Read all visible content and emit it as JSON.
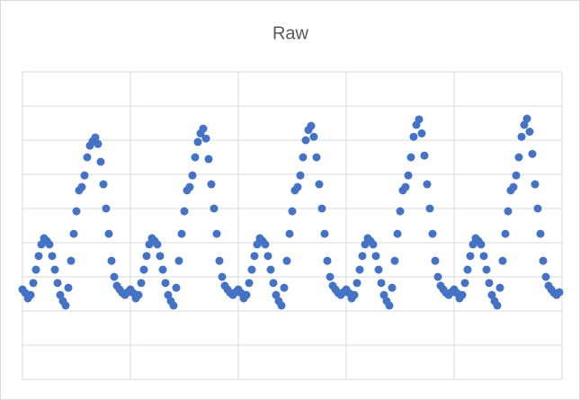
{
  "chart_data": {
    "type": "scatter",
    "title": "Raw",
    "color": "#4472c4",
    "grid": true,
    "tick_labels": false,
    "xlim": [
      0,
      5
    ],
    "xticks": [
      0,
      1,
      2,
      3,
      4,
      5
    ],
    "ylim": [
      0,
      9
    ],
    "yticks": [
      0,
      1,
      2,
      3,
      4,
      5,
      6,
      7,
      8,
      9
    ],
    "x": [
      0,
      0.025,
      0.05,
      0.075,
      0.1,
      0.125,
      0.15,
      0.175,
      0.2,
      0.225,
      0.25,
      0.275,
      0.3,
      0.325,
      0.35,
      0.375,
      0.4,
      0.425,
      0.45,
      0.475,
      0.5,
      0.525,
      0.55,
      0.575,
      0.6,
      0.625,
      0.65,
      0.675,
      0.7,
      0.725,
      0.75,
      0.775,
      0.8,
      0.825,
      0.85,
      0.875,
      0.9,
      0.925,
      0.95,
      0.975,
      1,
      1.025,
      1.05,
      1.075,
      1.1,
      1.125,
      1.15,
      1.175,
      1.2,
      1.225,
      1.25,
      1.275,
      1.3,
      1.325,
      1.35,
      1.375,
      1.4,
      1.425,
      1.45,
      1.475,
      1.5,
      1.525,
      1.55,
      1.575,
      1.6,
      1.625,
      1.65,
      1.675,
      1.7,
      1.725,
      1.75,
      1.775,
      1.8,
      1.825,
      1.85,
      1.875,
      1.9,
      1.925,
      1.95,
      1.975,
      2,
      2.025,
      2.05,
      2.075,
      2.1,
      2.125,
      2.15,
      2.175,
      2.2,
      2.225,
      2.25,
      2.275,
      2.3,
      2.325,
      2.35,
      2.375,
      2.4,
      2.425,
      2.45,
      2.475,
      2.5,
      2.525,
      2.55,
      2.575,
      2.6,
      2.625,
      2.65,
      2.675,
      2.7,
      2.725,
      2.75,
      2.775,
      2.8,
      2.825,
      2.85,
      2.875,
      2.9,
      2.925,
      2.95,
      2.975,
      3,
      3.025,
      3.05,
      3.075,
      3.1,
      3.125,
      3.15,
      3.175,
      3.2,
      3.225,
      3.25,
      3.275,
      3.3,
      3.325,
      3.35,
      3.375,
      3.4,
      3.425,
      3.45,
      3.475,
      3.5,
      3.525,
      3.55,
      3.575,
      3.6,
      3.625,
      3.65,
      3.675,
      3.7,
      3.725,
      3.75,
      3.775,
      3.8,
      3.825,
      3.85,
      3.875,
      3.9,
      3.925,
      3.95,
      3.975,
      4,
      4.025,
      4.05,
      4.075,
      4.1,
      4.125,
      4.15,
      4.175,
      4.2,
      4.225,
      4.25,
      4.275,
      4.3,
      4.325,
      4.35,
      4.375,
      4.4,
      4.425,
      4.45,
      4.475,
      4.5,
      4.525,
      4.55,
      4.575,
      4.6,
      4.625,
      4.65,
      4.675,
      4.7,
      4.725,
      4.75,
      4.775,
      4.8,
      4.825,
      4.85,
      4.875,
      4.9,
      4.925,
      4.95,
      4.975
    ],
    "values": [
      2.63,
      2.53,
      2.37,
      2.47,
      2.82,
      3.21,
      3.61,
      3.95,
      4.13,
      4.05,
      3.95,
      3.61,
      3.21,
      2.82,
      2.47,
      2.29,
      2.16,
      2.68,
      3.47,
      4.26,
      4.92,
      5.53,
      5.63,
      5.97,
      6.5,
      6.84,
      6.97,
      7.08,
      6.89,
      6.37,
      5.71,
      5,
      4.26,
      3.47,
      3,
      2.74,
      2.63,
      2.53,
      2.47,
      2.55,
      2.63,
      2.53,
      2.37,
      2.47,
      2.82,
      3.21,
      3.61,
      3.95,
      4.13,
      4.05,
      3.95,
      3.61,
      3.21,
      2.82,
      2.47,
      2.29,
      2.16,
      2.68,
      3.47,
      4.26,
      4.92,
      5.53,
      5.63,
      5.97,
      6.5,
      6.95,
      7.2,
      7.34,
      7.05,
      6.45,
      5.71,
      5,
      4.26,
      3.47,
      3,
      2.74,
      2.63,
      2.53,
      2.47,
      2.55,
      2.63,
      2.53,
      2.37,
      2.47,
      2.82,
      3.21,
      3.61,
      3.95,
      4.13,
      4.05,
      3.95,
      3.61,
      3.21,
      2.82,
      2.47,
      2.29,
      2.16,
      2.68,
      3.47,
      4.26,
      4.92,
      5.53,
      5.63,
      5.97,
      6.5,
      7,
      7.3,
      7.42,
      7.1,
      6.5,
      5.71,
      5,
      4.26,
      3.47,
      3,
      2.74,
      2.63,
      2.53,
      2.47,
      2.55,
      2.63,
      2.53,
      2.37,
      2.47,
      2.82,
      3.21,
      3.61,
      3.95,
      4.13,
      4.05,
      3.95,
      3.61,
      3.21,
      2.82,
      2.47,
      2.29,
      2.16,
      2.68,
      3.47,
      4.26,
      4.92,
      5.53,
      5.63,
      5.97,
      6.5,
      7.1,
      7.45,
      7.61,
      7.2,
      6.55,
      5.71,
      5,
      4.26,
      3.47,
      3,
      2.74,
      2.63,
      2.53,
      2.47,
      2.55,
      2.63,
      2.53,
      2.37,
      2.47,
      2.82,
      3.21,
      3.61,
      3.95,
      4.13,
      4.05,
      3.95,
      3.61,
      3.21,
      2.82,
      2.47,
      2.29,
      2.16,
      2.68,
      3.47,
      4.26,
      4.92,
      5.53,
      5.63,
      5.97,
      6.5,
      7.1,
      7.45,
      7.63,
      7.25,
      6.6,
      5.71,
      5,
      4.26,
      3.47,
      3,
      2.74,
      2.63,
      2.53,
      2.47,
      2.55
    ]
  }
}
